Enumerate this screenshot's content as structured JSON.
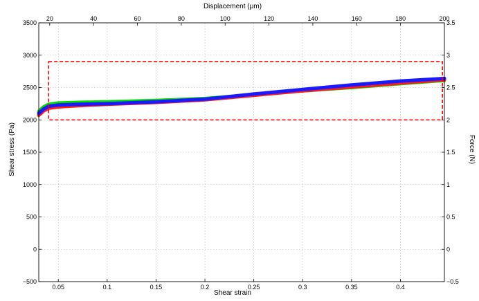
{
  "chart_data": {
    "type": "line",
    "xlabel": "Shear strain",
    "ylabel": "Shear stress (Pa)",
    "top_xlabel": "Displacement (μm)",
    "right_ylabel": "Force (N)",
    "xlim": [
      0.03,
      0.445
    ],
    "ylim": [
      -500,
      3500
    ],
    "top_xlim": [
      15,
      200
    ],
    "right_ylim": [
      -0.5,
      3.5
    ],
    "x_ticks": [
      {
        "value": 0.05,
        "label": "0.05"
      },
      {
        "value": 0.1,
        "label": "0.1"
      },
      {
        "value": 0.15,
        "label": "0.15"
      },
      {
        "value": 0.2,
        "label": "0.2"
      },
      {
        "value": 0.25,
        "label": "0.25"
      },
      {
        "value": 0.3,
        "label": "0.3"
      },
      {
        "value": 0.35,
        "label": "0.35"
      },
      {
        "value": 0.4,
        "label": "0.4"
      }
    ],
    "y_ticks": [
      {
        "value": -500,
        "label": "−500"
      },
      {
        "value": 0,
        "label": "0"
      },
      {
        "value": 500,
        "label": "500"
      },
      {
        "value": 1000,
        "label": "1000"
      },
      {
        "value": 1500,
        "label": "1500"
      },
      {
        "value": 2000,
        "label": "2000"
      },
      {
        "value": 2500,
        "label": "2500"
      },
      {
        "value": 3000,
        "label": "3000"
      },
      {
        "value": 3500,
        "label": "3500"
      }
    ],
    "top_ticks": [
      {
        "value": 20,
        "label": "20"
      },
      {
        "value": 40,
        "label": "40"
      },
      {
        "value": 60,
        "label": "60"
      },
      {
        "value": 80,
        "label": "80"
      },
      {
        "value": 100,
        "label": "100"
      },
      {
        "value": 120,
        "label": "120"
      },
      {
        "value": 140,
        "label": "140"
      },
      {
        "value": 160,
        "label": "160"
      },
      {
        "value": 180,
        "label": "180"
      },
      {
        "value": 200,
        "label": "200"
      }
    ],
    "right_ticks": [
      {
        "value": -0.5,
        "label": "−0.5"
      },
      {
        "value": 0,
        "label": "0"
      },
      {
        "value": 0.5,
        "label": "0.5"
      },
      {
        "value": 1,
        "label": "1"
      },
      {
        "value": 1.5,
        "label": "1.5"
      },
      {
        "value": 2,
        "label": "2"
      },
      {
        "value": 2.5,
        "label": "2.5"
      },
      {
        "value": 3,
        "label": "3"
      },
      {
        "value": 3.5,
        "label": "3.5"
      }
    ],
    "grid": true,
    "series": [
      {
        "color": "#00dd00",
        "x": [
          0.03,
          0.035,
          0.04,
          0.05,
          0.07,
          0.1,
          0.15,
          0.2,
          0.25,
          0.3,
          0.35,
          0.4,
          0.445
        ],
        "y": [
          2130,
          2200,
          2240,
          2260,
          2270,
          2280,
          2300,
          2330,
          2390,
          2450,
          2500,
          2560,
          2610
        ]
      },
      {
        "color": "#ff1a1a",
        "x": [
          0.03,
          0.035,
          0.04,
          0.05,
          0.07,
          0.1,
          0.15,
          0.2,
          0.25,
          0.3,
          0.35,
          0.4,
          0.445
        ],
        "y": [
          2070,
          2140,
          2180,
          2200,
          2220,
          2240,
          2270,
          2310,
          2380,
          2450,
          2510,
          2570,
          2620
        ]
      },
      {
        "color": "#1a1aff",
        "x": [
          0.03,
          0.035,
          0.04,
          0.05,
          0.07,
          0.1,
          0.15,
          0.2,
          0.25,
          0.3,
          0.35,
          0.4,
          0.445
        ],
        "y": [
          2100,
          2170,
          2210,
          2230,
          2240,
          2250,
          2280,
          2320,
          2400,
          2470,
          2540,
          2600,
          2640
        ]
      }
    ],
    "annotation_box": {
      "color": "#ff0000",
      "x": [
        0.04,
        0.443
      ],
      "y": [
        2000,
        2900
      ]
    }
  }
}
